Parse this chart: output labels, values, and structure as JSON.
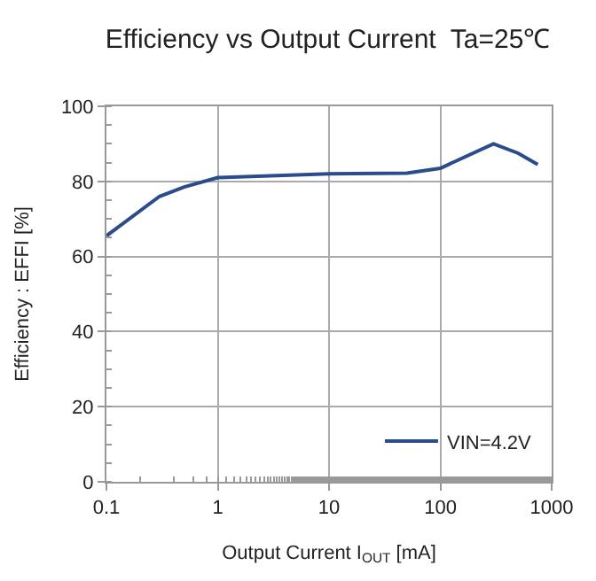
{
  "chart_data": {
    "type": "line",
    "title": "Efficiency vs Output Current  Ta=25℃",
    "xlabel": "Output Current I$_{OUT}$ [mA]",
    "ylabel": "Efficiency : EFFI [%]",
    "x": [
      0.1,
      0.3,
      0.5,
      1,
      10,
      50,
      100,
      300,
      500,
      750
    ],
    "series": [
      {
        "name": "VIN=4.2V",
        "color": "#2b4c8c",
        "values": [
          65.5,
          76,
          78.5,
          81,
          82,
          82.2,
          83.5,
          90,
          87.5,
          84.5
        ]
      }
    ],
    "log": "x",
    "xlim": [
      0.1,
      1000
    ],
    "xticks": [
      0.1,
      1,
      10,
      100,
      1000
    ],
    "ylim": [
      0,
      100
    ],
    "yticks": [
      0,
      20,
      40,
      60,
      80,
      100
    ],
    "grid": true,
    "legend": "bottom right",
    "marker": "none",
    "line_style": "solid"
  }
}
